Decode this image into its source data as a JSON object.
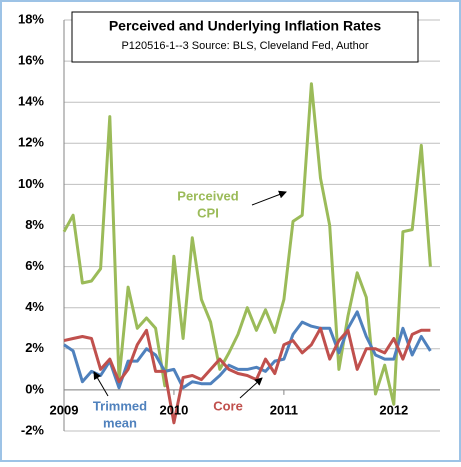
{
  "chart_data": {
    "type": "line",
    "title": "Perceived and Underlying Inflation Rates",
    "subtitle": "P120516-1--3 Source: BLS, Cleveland Fed, Author",
    "x": [
      2009,
      2009.083,
      2009.167,
      2009.25,
      2009.333,
      2009.417,
      2009.5,
      2009.583,
      2009.667,
      2009.75,
      2009.833,
      2009.917,
      2010,
      2010.083,
      2010.167,
      2010.25,
      2010.333,
      2010.417,
      2010.5,
      2010.583,
      2010.667,
      2010.75,
      2010.833,
      2010.917,
      2011,
      2011.083,
      2011.167,
      2011.25,
      2011.333,
      2011.417,
      2011.5,
      2011.583,
      2011.667,
      2011.75,
      2011.833,
      2011.917,
      2012,
      2012.083,
      2012.167,
      2012.25,
      2012.333
    ],
    "series": [
      {
        "name": "Perceived CPI",
        "color": "#9bbb59",
        "values": [
          7.7,
          8.5,
          5.2,
          5.3,
          5.9,
          13.3,
          0.5,
          5.0,
          3.0,
          3.5,
          3.0,
          0.2,
          6.5,
          2.5,
          7.4,
          4.4,
          3.3,
          1.0,
          1.8,
          2.7,
          4.0,
          2.9,
          3.9,
          2.8,
          4.4,
          8.2,
          8.5,
          14.9,
          10.3,
          8.0,
          1.0,
          3.6,
          5.7,
          4.5,
          -0.2,
          1.2,
          -0.7,
          7.7,
          7.8,
          11.9,
          6.0
        ]
      },
      {
        "name": "Trimmed mean",
        "color": "#4f81bd",
        "values": [
          2.2,
          1.9,
          0.4,
          0.9,
          0.7,
          1.4,
          0.1,
          1.4,
          1.4,
          2.0,
          1.7,
          0.9,
          1.0,
          0.1,
          0.4,
          0.3,
          0.3,
          0.7,
          1.2,
          1.0,
          1.0,
          1.1,
          0.9,
          1.4,
          1.5,
          2.7,
          3.3,
          3.1,
          3.0,
          3.0,
          1.8,
          3.0,
          3.8,
          2.6,
          1.7,
          1.5,
          1.5,
          3.0,
          1.7,
          2.6,
          1.9
        ]
      },
      {
        "name": "Core",
        "color": "#c0504d",
        "values": [
          2.4,
          2.5,
          2.6,
          2.5,
          1.0,
          1.5,
          0.4,
          1.0,
          2.2,
          2.9,
          0.9,
          0.9,
          -1.6,
          0.6,
          0.7,
          0.5,
          1.0,
          1.5,
          1.0,
          0.8,
          0.7,
          0.5,
          1.5,
          0.8,
          2.2,
          2.4,
          1.8,
          2.2,
          3.0,
          1.5,
          2.4,
          2.9,
          1.0,
          2.0,
          2.0,
          1.8,
          2.5,
          1.5,
          2.7,
          2.9,
          2.9
        ]
      }
    ],
    "annotations": [
      {
        "text": [
          "Perceived",
          "CPI"
        ],
        "color": "#9bbb59"
      },
      {
        "text": [
          "Trimmed",
          "mean"
        ],
        "color": "#4f81bd"
      },
      {
        "text": [
          "Core"
        ],
        "color": "#c0504d"
      }
    ],
    "xlim": [
      2009,
      2012.42
    ],
    "xticks": [
      2009,
      2010,
      2011,
      2012
    ],
    "ylim": [
      -2,
      18
    ],
    "yticks": [
      {
        "value": -2,
        "label": "-2%"
      },
      {
        "value": 0,
        "label": "0%"
      },
      {
        "value": 2,
        "label": "2%"
      },
      {
        "value": 4,
        "label": "4%"
      },
      {
        "value": 6,
        "label": "6%"
      },
      {
        "value": 8,
        "label": "8%"
      },
      {
        "value": 10,
        "label": "10%"
      },
      {
        "value": 12,
        "label": "12%"
      },
      {
        "value": 14,
        "label": "14%"
      },
      {
        "value": 16,
        "label": "16%"
      },
      {
        "value": 18,
        "label": "18%"
      }
    ],
    "grid": true
  }
}
